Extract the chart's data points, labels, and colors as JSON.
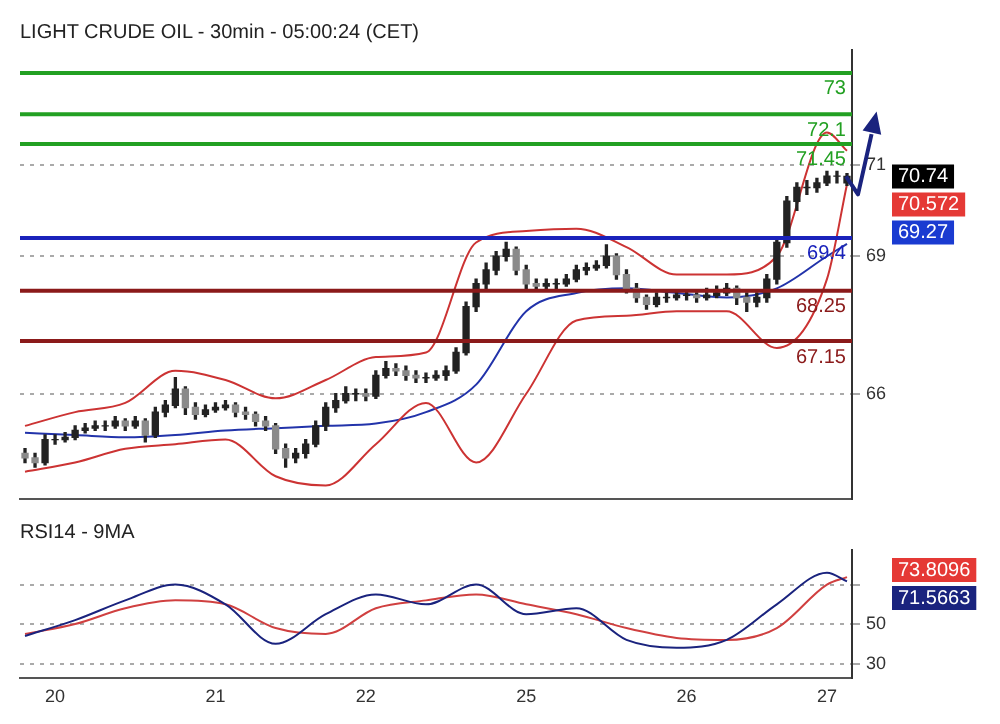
{
  "chart_data": [
    {
      "type": "candlestick",
      "title": "LIGHT CRUDE OIL - 30min - 05:00:24 (CET)",
      "categories": [
        null,
        null,
        null,
        "20",
        null,
        null,
        null,
        null,
        null,
        null,
        null,
        null,
        null,
        null,
        null,
        null,
        null,
        null,
        null,
        "21",
        null,
        null,
        null,
        null,
        null,
        null,
        null,
        null,
        null,
        null,
        null,
        null,
        null,
        null,
        "22",
        null,
        null,
        null,
        null,
        null,
        null,
        null,
        null,
        null,
        null,
        null,
        null,
        null,
        null,
        null,
        "25",
        null,
        null,
        null,
        null,
        null,
        null,
        null,
        null,
        null,
        null,
        null,
        null,
        null,
        null,
        null,
        "26",
        null,
        null,
        null,
        null,
        null,
        null,
        null,
        null,
        null,
        null,
        null,
        null,
        null,
        "27",
        null,
        null
      ],
      "color": "#222222",
      "ohlc": [
        [
          64.7,
          64.8,
          64.5,
          64.6
        ],
        [
          64.6,
          64.7,
          64.4,
          64.5
        ],
        [
          64.5,
          65.1,
          64.45,
          65.0
        ],
        [
          65.0,
          65.1,
          64.9,
          65.0
        ],
        [
          65.0,
          65.15,
          64.95,
          65.05
        ],
        [
          65.05,
          65.3,
          65.0,
          65.2
        ],
        [
          65.2,
          65.35,
          65.15,
          65.25
        ],
        [
          65.25,
          65.4,
          65.2,
          65.3
        ],
        [
          65.3,
          65.4,
          65.2,
          65.3
        ],
        [
          65.3,
          65.5,
          65.25,
          65.4
        ],
        [
          65.4,
          65.45,
          65.2,
          65.3
        ],
        [
          65.3,
          65.5,
          65.25,
          65.4
        ],
        [
          65.4,
          65.45,
          64.95,
          65.1
        ],
        [
          65.1,
          65.7,
          65.05,
          65.6
        ],
        [
          65.6,
          65.85,
          65.5,
          65.75
        ],
        [
          65.75,
          66.35,
          65.7,
          66.1
        ],
        [
          66.1,
          66.15,
          65.55,
          65.7
        ],
        [
          65.7,
          65.8,
          65.45,
          65.55
        ],
        [
          65.55,
          65.75,
          65.5,
          65.65
        ],
        [
          65.65,
          65.8,
          65.6,
          65.7
        ],
        [
          65.7,
          65.85,
          65.65,
          65.75
        ],
        [
          65.75,
          65.8,
          65.5,
          65.6
        ],
        [
          65.6,
          65.7,
          65.45,
          65.55
        ],
        [
          65.55,
          65.6,
          65.3,
          65.4
        ],
        [
          65.4,
          65.5,
          65.2,
          65.3
        ],
        [
          65.3,
          65.35,
          64.7,
          64.8
        ],
        [
          64.8,
          64.9,
          64.4,
          64.6
        ],
        [
          64.6,
          64.8,
          64.5,
          64.7
        ],
        [
          64.7,
          65.0,
          64.6,
          64.9
        ],
        [
          64.9,
          65.4,
          64.85,
          65.3
        ],
        [
          65.3,
          65.8,
          65.2,
          65.7
        ],
        [
          65.7,
          66.0,
          65.6,
          65.85
        ],
        [
          65.85,
          66.15,
          65.8,
          66.0
        ],
        [
          66.0,
          66.1,
          65.85,
          66.0
        ],
        [
          66.0,
          66.1,
          65.85,
          65.95
        ],
        [
          65.95,
          66.5,
          65.9,
          66.4
        ],
        [
          66.4,
          66.7,
          66.35,
          66.55
        ],
        [
          66.55,
          66.65,
          66.4,
          66.5
        ],
        [
          66.5,
          66.6,
          66.3,
          66.4
        ],
        [
          66.4,
          66.5,
          66.25,
          66.35
        ],
        [
          66.35,
          66.45,
          66.25,
          66.35
        ],
        [
          66.35,
          66.5,
          66.3,
          66.4
        ],
        [
          66.4,
          66.6,
          66.3,
          66.5
        ],
        [
          66.5,
          67.0,
          66.45,
          66.9
        ],
        [
          66.9,
          68.0,
          66.85,
          67.9
        ],
        [
          67.9,
          68.5,
          67.8,
          68.4
        ],
        [
          68.4,
          68.85,
          68.3,
          68.7
        ],
        [
          68.7,
          69.1,
          68.6,
          69.0
        ],
        [
          69.0,
          69.3,
          68.9,
          69.15
        ],
        [
          69.15,
          69.2,
          68.6,
          68.7
        ],
        [
          68.7,
          68.8,
          68.3,
          68.4
        ],
        [
          68.4,
          68.5,
          68.25,
          68.35
        ],
        [
          68.35,
          68.5,
          68.3,
          68.4
        ],
        [
          68.4,
          68.5,
          68.3,
          68.4
        ],
        [
          68.4,
          68.6,
          68.35,
          68.5
        ],
        [
          68.5,
          68.8,
          68.45,
          68.7
        ],
        [
          68.7,
          68.85,
          68.6,
          68.75
        ],
        [
          68.75,
          68.9,
          68.7,
          68.8
        ],
        [
          68.8,
          69.25,
          68.75,
          69.0
        ],
        [
          69.0,
          69.05,
          68.5,
          68.6
        ],
        [
          68.6,
          68.7,
          68.2,
          68.3
        ],
        [
          68.3,
          68.4,
          68.0,
          68.1
        ],
        [
          68.1,
          68.15,
          67.85,
          67.95
        ],
        [
          67.95,
          68.2,
          67.9,
          68.1
        ],
        [
          68.1,
          68.2,
          68.0,
          68.1
        ],
        [
          68.1,
          68.25,
          68.05,
          68.15
        ],
        [
          68.15,
          68.25,
          68.05,
          68.15
        ],
        [
          68.15,
          68.2,
          68.0,
          68.1
        ],
        [
          68.1,
          68.3,
          68.05,
          68.15
        ],
        [
          68.15,
          68.35,
          68.1,
          68.2
        ],
        [
          68.2,
          68.4,
          68.15,
          68.3
        ],
        [
          68.3,
          68.35,
          67.95,
          68.1
        ],
        [
          68.1,
          68.2,
          67.8,
          68.0
        ],
        [
          68.0,
          68.2,
          67.9,
          68.1
        ],
        [
          68.1,
          68.6,
          68.0,
          68.5
        ],
        [
          68.5,
          69.4,
          68.4,
          69.3
        ],
        [
          69.3,
          70.3,
          69.2,
          70.2
        ],
        [
          70.2,
          70.6,
          70.0,
          70.5
        ],
        [
          70.5,
          70.65,
          70.35,
          70.5
        ],
        [
          70.5,
          70.7,
          70.4,
          70.6
        ],
        [
          70.6,
          70.85,
          70.55,
          70.75
        ],
        [
          70.75,
          70.85,
          70.6,
          70.75
        ],
        [
          70.6,
          70.8,
          70.55,
          70.74
        ]
      ],
      "colors": [
        "#8a8a8a",
        "#8a8a8a",
        "#222222",
        "#222222",
        "#222222",
        "#222222",
        "#222222",
        "#222222",
        "#222222",
        "#222222",
        "#8a8a8a",
        "#222222",
        "#8a8a8a",
        "#222222",
        "#222222",
        "#222222",
        "#8a8a8a",
        "#8a8a8a",
        "#222222",
        "#222222",
        "#222222",
        "#8a8a8a",
        "#8a8a8a",
        "#8a8a8a",
        "#8a8a8a",
        "#8a8a8a",
        "#8a8a8a",
        "#222222",
        "#222222",
        "#222222",
        "#222222",
        "#222222",
        "#222222",
        "#222222",
        "#8a8a8a",
        "#222222",
        "#222222",
        "#8a8a8a",
        "#8a8a8a",
        "#8a8a8a",
        "#222222",
        "#222222",
        "#222222",
        "#222222",
        "#222222",
        "#222222",
        "#222222",
        "#222222",
        "#222222",
        "#8a8a8a",
        "#8a8a8a",
        "#8a8a8a",
        "#222222",
        "#222222",
        "#222222",
        "#222222",
        "#222222",
        "#222222",
        "#222222",
        "#8a8a8a",
        "#8a8a8a",
        "#8a8a8a",
        "#8a8a8a",
        "#222222",
        "#222222",
        "#222222",
        "#222222",
        "#8a8a8a",
        "#222222",
        "#222222",
        "#222222",
        "#8a8a8a",
        "#8a8a8a",
        "#222222",
        "#222222",
        "#222222",
        "#222222",
        "#222222",
        "#222222",
        "#222222",
        "#222222",
        "#222222",
        "#222222"
      ],
      "series": [
        {
          "type": "line",
          "color": "#cc3333",
          "values": [
            65.3,
            null,
            null,
            null,
            null,
            65.6,
            null,
            null,
            null,
            null,
            65.8,
            null,
            null,
            null,
            null,
            66.5,
            null,
            null,
            null,
            null,
            66.3,
            null,
            null,
            null,
            null,
            65.9,
            null,
            null,
            null,
            null,
            66.3,
            null,
            null,
            null,
            null,
            66.8,
            null,
            null,
            null,
            null,
            66.9,
            null,
            null,
            null,
            null,
            69.3,
            null,
            null,
            null,
            null,
            69.55,
            null,
            null,
            null,
            null,
            69.6,
            null,
            null,
            null,
            null,
            69.2,
            null,
            null,
            null,
            null,
            68.6,
            null,
            null,
            null,
            null,
            68.6,
            null,
            null,
            null,
            null,
            69.0,
            null,
            null,
            null,
            null,
            71.7,
            null,
            71.3
          ]
        },
        {
          "type": "line",
          "color": "#cc3333",
          "values": [
            64.3,
            null,
            null,
            null,
            null,
            64.5,
            null,
            null,
            null,
            null,
            64.8,
            null,
            null,
            null,
            null,
            64.9,
            null,
            null,
            null,
            null,
            65.0,
            null,
            null,
            null,
            null,
            64.2,
            null,
            null,
            null,
            null,
            64.0,
            null,
            null,
            null,
            null,
            64.9,
            null,
            null,
            null,
            null,
            65.8,
            null,
            null,
            null,
            null,
            64.5,
            null,
            null,
            null,
            null,
            66.0,
            null,
            null,
            null,
            null,
            67.6,
            null,
            null,
            null,
            null,
            67.7,
            null,
            null,
            null,
            null,
            67.8,
            null,
            null,
            null,
            null,
            67.8,
            null,
            null,
            null,
            null,
            67.0,
            null,
            null,
            null,
            null,
            68.5,
            null,
            70.57
          ]
        },
        {
          "type": "line",
          "color": "#2233aa",
          "values": [
            65.15,
            null,
            null,
            null,
            null,
            65.1,
            null,
            null,
            null,
            null,
            65.05,
            null,
            null,
            null,
            null,
            65.1,
            null,
            null,
            null,
            null,
            65.2,
            null,
            null,
            null,
            null,
            65.25,
            null,
            null,
            null,
            null,
            65.3,
            null,
            null,
            null,
            null,
            65.35,
            null,
            null,
            null,
            null,
            65.6,
            null,
            null,
            null,
            null,
            66.2,
            null,
            null,
            null,
            null,
            67.8,
            null,
            null,
            null,
            null,
            68.2,
            null,
            null,
            null,
            null,
            68.3,
            null,
            null,
            null,
            null,
            68.2,
            null,
            null,
            null,
            null,
            68.1,
            null,
            null,
            null,
            null,
            68.3,
            null,
            null,
            null,
            null,
            69.0,
            null,
            69.27
          ]
        }
      ],
      "ylim": [
        63.7,
        73.5
      ],
      "yticks": [
        66,
        69,
        71
      ],
      "grid": "y",
      "tick_labels": "y",
      "ref_lines": [
        {
          "axis": "y",
          "value": 73,
          "label": "73",
          "color": "#22a022"
        },
        {
          "axis": "y",
          "value": 72.1,
          "label": "72.1",
          "color": "#22a022"
        },
        {
          "axis": "y",
          "value": 71.45,
          "label": "71.45",
          "color": "#22a022"
        },
        {
          "axis": "y",
          "value": 69.4,
          "label": "69.4",
          "color": "#1a22bb"
        },
        {
          "axis": "y",
          "value": 68.25,
          "label": "68.25",
          "color": "#8b1a1a"
        },
        {
          "axis": "y",
          "value": 67.15,
          "label": "67.15",
          "color": "#8b1a1a"
        }
      ],
      "annotations": [
        "70.74",
        "70.572",
        "69.27"
      ]
    },
    {
      "type": "line",
      "title": "RSI14 - 9MA",
      "categories": [
        null,
        null,
        null,
        "20",
        null,
        null,
        null,
        null,
        null,
        null,
        null,
        null,
        null,
        null,
        null,
        null,
        null,
        null,
        null,
        "21",
        null,
        null,
        null,
        null,
        null,
        null,
        null,
        null,
        null,
        null,
        null,
        null,
        null,
        null,
        "22",
        null,
        null,
        null,
        null,
        null,
        null,
        null,
        null,
        null,
        null,
        null,
        null,
        null,
        null,
        null,
        "25",
        null,
        null,
        null,
        null,
        null,
        null,
        null,
        null,
        null,
        null,
        null,
        null,
        null,
        null,
        null,
        "26",
        null,
        null,
        null,
        null,
        null,
        null,
        null,
        null,
        null,
        null,
        null,
        null,
        null,
        "27",
        null,
        null
      ],
      "series": [
        {
          "color": "#1a237e",
          "values": [
            44,
            null,
            null,
            null,
            null,
            52,
            null,
            null,
            null,
            null,
            62,
            null,
            null,
            null,
            null,
            70,
            null,
            null,
            null,
            null,
            60,
            null,
            null,
            null,
            null,
            40,
            null,
            null,
            null,
            null,
            55,
            null,
            null,
            null,
            null,
            65,
            null,
            null,
            null,
            null,
            60,
            null,
            null,
            null,
            null,
            70,
            null,
            null,
            null,
            null,
            55,
            null,
            null,
            null,
            null,
            58,
            null,
            null,
            null,
            null,
            42,
            null,
            null,
            null,
            null,
            38,
            null,
            null,
            null,
            null,
            42,
            null,
            null,
            null,
            null,
            60,
            null,
            null,
            null,
            null,
            76,
            null,
            71.6
          ]
        },
        {
          "color": "#d04040",
          "values": [
            45,
            null,
            null,
            null,
            null,
            50,
            null,
            null,
            null,
            null,
            58,
            null,
            null,
            null,
            null,
            62,
            null,
            null,
            null,
            null,
            60,
            null,
            null,
            null,
            null,
            48,
            null,
            null,
            null,
            null,
            45,
            null,
            null,
            null,
            null,
            58,
            null,
            null,
            null,
            null,
            62,
            null,
            null,
            null,
            null,
            65,
            null,
            null,
            null,
            null,
            60,
            null,
            null,
            null,
            null,
            55,
            null,
            null,
            null,
            null,
            48,
            null,
            null,
            null,
            null,
            43,
            null,
            null,
            null,
            null,
            42,
            null,
            null,
            null,
            null,
            48,
            null,
            null,
            null,
            null,
            70,
            null,
            73.8
          ]
        }
      ],
      "ylim": [
        22.5,
        87.5
      ],
      "yticks": [
        30,
        50,
        {
          "value": 70,
          "label": null
        }
      ],
      "grid": "y",
      "annotations": [
        "73.8096",
        "71.5663"
      ]
    }
  ]
}
